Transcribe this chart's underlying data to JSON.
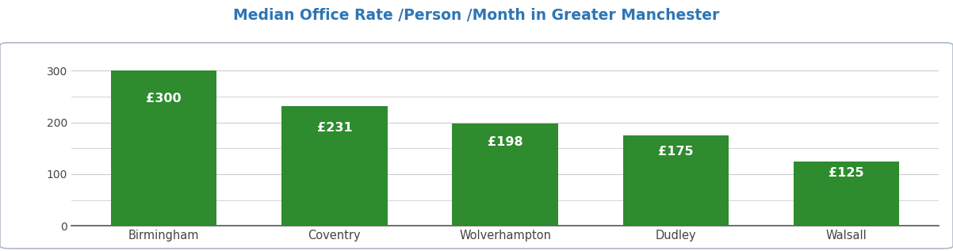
{
  "title": "Median Office Rate /Person /Month in Greater Manchester",
  "title_color": "#2e75b6",
  "title_fontsize": 13.5,
  "categories": [
    "Birmingham",
    "Coventry",
    "Wolverhampton",
    "Dudley",
    "Walsall"
  ],
  "values": [
    300,
    231,
    198,
    175,
    125
  ],
  "labels": [
    "£300",
    "£231",
    "£198",
    "£175",
    "£125"
  ],
  "bar_color": "#2e8b2e",
  "label_color": "#ffffff",
  "label_fontsize": 11.5,
  "yticks": [
    0,
    100,
    200,
    300
  ],
  "ylim": [
    0,
    330
  ],
  "tick_color": "#444444",
  "grid_color": "#cccccc",
  "spine_color": "#bbbbbb",
  "bottom_spine_color": "#555555",
  "background_color": "#ffffff",
  "fig_background_color": "#ffffff",
  "box_border_color": "#b0b8c8",
  "bar_width": 0.62
}
